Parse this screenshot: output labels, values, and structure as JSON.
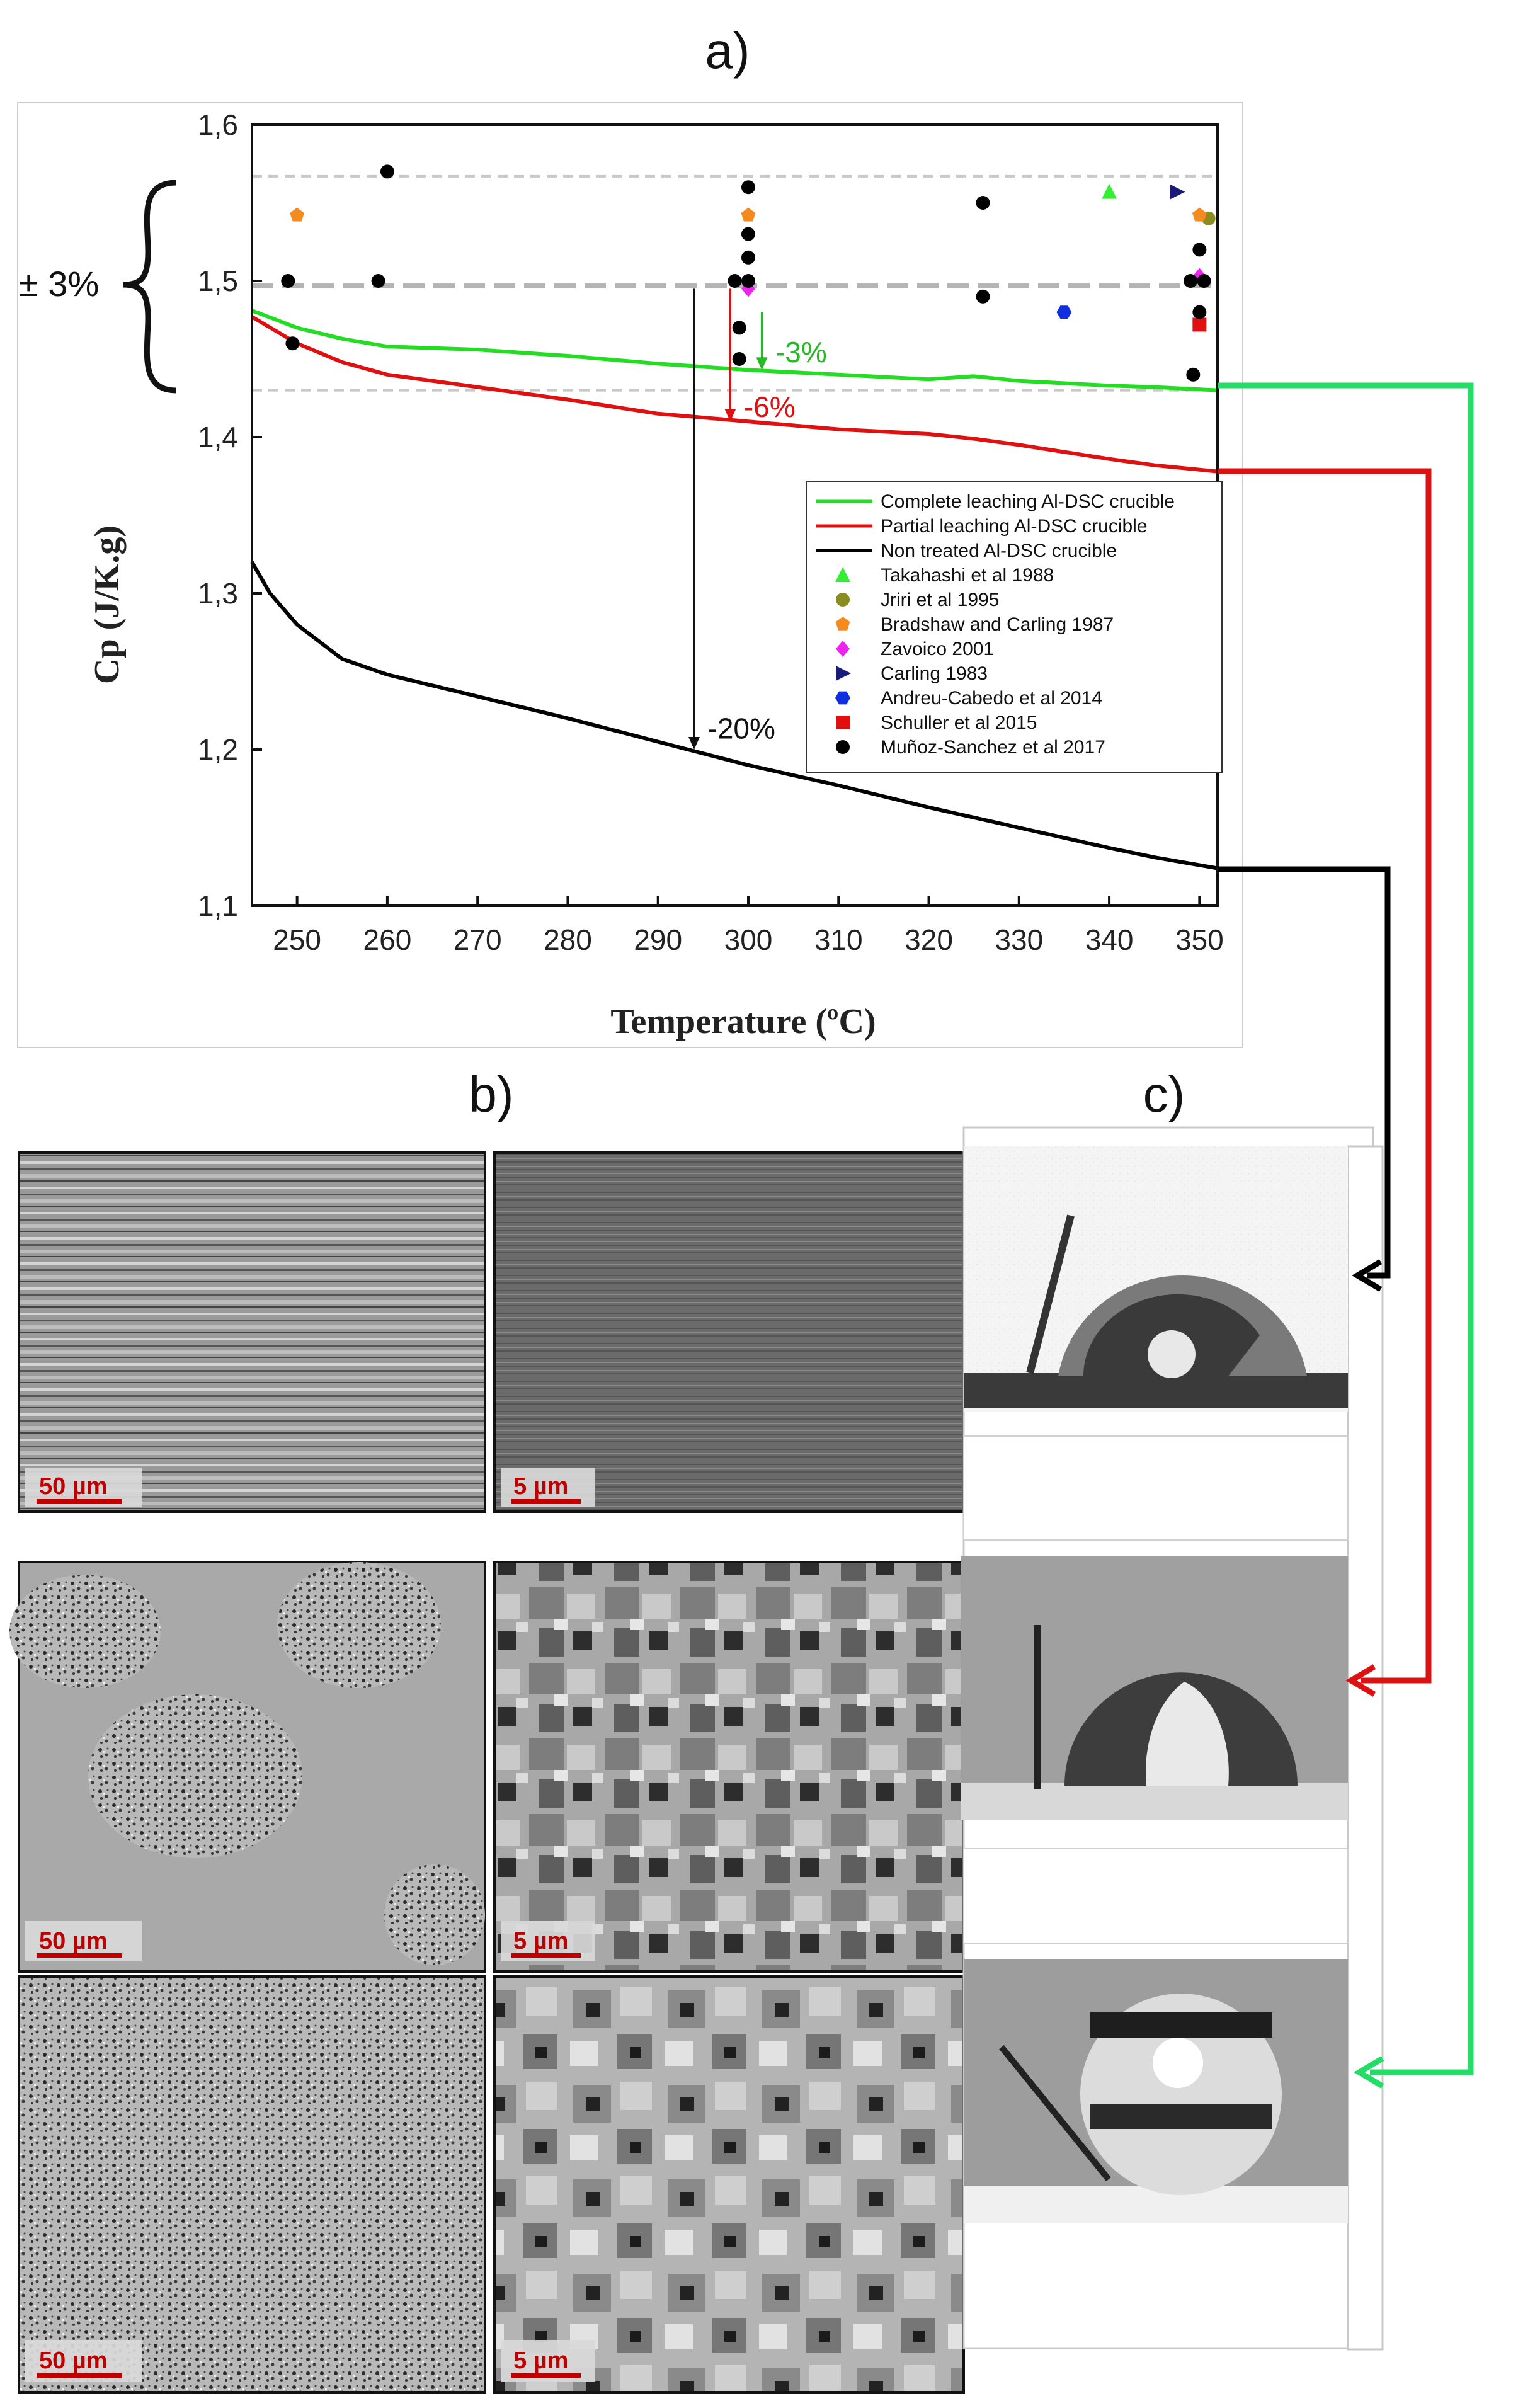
{
  "panels": {
    "a": "a)",
    "b": "b)",
    "c": "c)"
  },
  "band_label": "± 3%",
  "chart_data": {
    "type": "line",
    "xlabel": "Temperature (ºC)",
    "ylabel": "Cp (J/K.g)",
    "xlim": [
      245,
      352
    ],
    "ylim": [
      1.1,
      1.6
    ],
    "xticks": [
      250,
      260,
      270,
      280,
      290,
      300,
      310,
      320,
      330,
      340,
      350
    ],
    "yticks": [
      "1,1",
      "1,2",
      "1,3",
      "1,4",
      "1,5",
      "1,6"
    ],
    "reference_lines": [
      1.567,
      1.497,
      1.43
    ],
    "series": [
      {
        "name": "Complete leaching Al-DSC crucible",
        "color": "#22dd22",
        "x": [
          245,
          250,
          255,
          260,
          270,
          280,
          290,
          300,
          310,
          320,
          325,
          330,
          340,
          345,
          352
        ],
        "y": [
          1.481,
          1.47,
          1.463,
          1.458,
          1.456,
          1.452,
          1.447,
          1.443,
          1.44,
          1.437,
          1.439,
          1.436,
          1.433,
          1.432,
          1.43
        ]
      },
      {
        "name": "Partial leaching Al-DSC crucible",
        "color": "#e01010",
        "x": [
          245,
          250,
          255,
          260,
          270,
          280,
          290,
          300,
          310,
          320,
          325,
          330,
          340,
          345,
          352
        ],
        "y": [
          1.477,
          1.46,
          1.448,
          1.44,
          1.432,
          1.424,
          1.415,
          1.41,
          1.405,
          1.402,
          1.399,
          1.395,
          1.386,
          1.382,
          1.378
        ]
      },
      {
        "name": "Non treated Al-DSC crucible",
        "color": "#000000",
        "x": [
          245,
          247,
          250,
          255,
          260,
          270,
          280,
          290,
          300,
          310,
          320,
          330,
          340,
          345,
          350,
          352
        ],
        "y": [
          1.32,
          1.3,
          1.28,
          1.258,
          1.248,
          1.234,
          1.22,
          1.205,
          1.19,
          1.177,
          1.163,
          1.15,
          1.137,
          1.131,
          1.126,
          1.124
        ]
      }
    ],
    "points": [
      {
        "name": "Takahashi et al 1988",
        "marker": "triangle-up",
        "color": "#33ee33",
        "data": [
          [
            340,
            1.557
          ]
        ]
      },
      {
        "name": "Jriri et al 1995",
        "marker": "circle",
        "color": "#8b8b22",
        "data": [
          [
            351,
            1.54
          ]
        ]
      },
      {
        "name": "Bradshaw and Carling 1987",
        "marker": "pentagon",
        "color": "#f58a1f",
        "data": [
          [
            250,
            1.542
          ],
          [
            300,
            1.542
          ],
          [
            350,
            1.542
          ]
        ]
      },
      {
        "name": "Zavoico 2001",
        "marker": "diamond",
        "color": "#ee22ee",
        "data": [
          [
            300,
            1.495
          ],
          [
            350,
            1.503
          ]
        ]
      },
      {
        "name": "Carling 1983",
        "marker": "triangle-right",
        "color": "#1a1a7a",
        "data": [
          [
            347.5,
            1.557
          ]
        ]
      },
      {
        "name": "Andreu-Cabedo et al 2014",
        "marker": "hexagon",
        "color": "#1030e0",
        "data": [
          [
            335,
            1.48
          ]
        ]
      },
      {
        "name": "Schuller et al 2015",
        "marker": "square",
        "color": "#e01010",
        "data": [
          [
            350,
            1.472
          ]
        ]
      },
      {
        "name": "Muñoz-Sanchez et al 2017",
        "marker": "circle",
        "color": "#000000",
        "data": [
          [
            249,
            1.5
          ],
          [
            249.5,
            1.46
          ],
          [
            259,
            1.5
          ],
          [
            260,
            1.57
          ],
          [
            298.5,
            1.5
          ],
          [
            299,
            1.47
          ],
          [
            299,
            1.45
          ],
          [
            300,
            1.56
          ],
          [
            300,
            1.53
          ],
          [
            300,
            1.5
          ],
          [
            300,
            1.515
          ],
          [
            326,
            1.55
          ],
          [
            326,
            1.49
          ],
          [
            349,
            1.5
          ],
          [
            349.3,
            1.44
          ],
          [
            350,
            1.52
          ],
          [
            350,
            1.48
          ],
          [
            350.5,
            1.5
          ]
        ]
      }
    ],
    "annotations": [
      {
        "text": "-3%",
        "color": "#22bb22"
      },
      {
        "text": "-6%",
        "color": "#e01010"
      },
      {
        "text": "-20%",
        "color": "#111111"
      }
    ]
  },
  "micrographs": [
    {
      "scale": "50 µm"
    },
    {
      "scale": "5 µm"
    },
    {
      "scale": "50 µm"
    },
    {
      "scale": "5 µm"
    },
    {
      "scale": "50 µm"
    },
    {
      "scale": "5 µm"
    }
  ],
  "colors": {
    "green_arrow": "#22dd66",
    "red_arrow": "#dd1111",
    "black_arrow": "#000000"
  }
}
